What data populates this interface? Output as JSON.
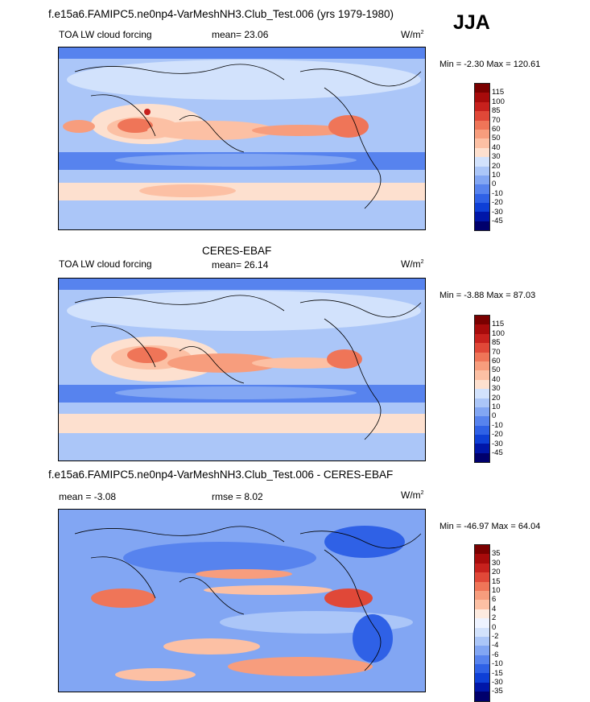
{
  "season": "JJA",
  "colors": {
    "abs_scale": [
      "#00006c",
      "#0016a8",
      "#0e3fd6",
      "#2f61e6",
      "#5783ee",
      "#82a6f3",
      "#abc6f8",
      "#d2e2fc",
      "#f7f7f7",
      "#fde0cf",
      "#fcc0a4",
      "#f79d7d",
      "#ef7558",
      "#e04838",
      "#c7211d",
      "#a70b0b",
      "#7a0000"
    ],
    "diff_scale": [
      "#00006c",
      "#0016a8",
      "#0e3fd6",
      "#2f61e6",
      "#5783ee",
      "#82a6f3",
      "#abc6f8",
      "#d2e2fc",
      "#eef3ff",
      "#fdebe0",
      "#fcc0a4",
      "#f79d7d",
      "#ef7558",
      "#e04838",
      "#c7211d",
      "#a70b0b",
      "#7a0000"
    ]
  },
  "panels": [
    {
      "title": "f.e15a6.FAMIPC5.ne0np4-VarMeshNH3.Club_Test.006 (yrs 1979-1980)",
      "left_label": "TOA LW cloud forcing",
      "mean_text": "mean=  23.06",
      "rmse_text": "",
      "units": "W/m",
      "units_sup": "2",
      "minmax": "Min =  -2.30 Max = 120.61",
      "ticks": [
        "115",
        "100",
        "85",
        "70",
        "60",
        "50",
        "40",
        "30",
        "20",
        "10",
        "0",
        "-10",
        "-20",
        "-30",
        "-45"
      ]
    },
    {
      "title": "CERES-EBAF",
      "left_label": "TOA LW cloud forcing",
      "mean_text": "mean=  26.14",
      "rmse_text": "",
      "units": "W/m",
      "units_sup": "2",
      "minmax": "Min =  -3.88 Max = 87.03",
      "ticks": [
        "115",
        "100",
        "85",
        "70",
        "60",
        "50",
        "40",
        "30",
        "20",
        "10",
        "0",
        "-10",
        "-20",
        "-30",
        "-45"
      ]
    },
    {
      "title": "f.e15a6.FAMIPC5.ne0np4-VarMeshNH3.Club_Test.006 - CERES-EBAF",
      "left_label": "mean =  -3.08",
      "mean_text": "",
      "rmse_text": "rmse =  8.02",
      "units": "W/m",
      "units_sup": "2",
      "minmax": "Min = -46.97 Max =  64.04",
      "ticks": [
        "35",
        "30",
        "20",
        "15",
        "10",
        "6",
        "4",
        "2",
        "0",
        "-2",
        "-4",
        "-6",
        "-10",
        "-15",
        "-30",
        "-35"
      ]
    }
  ]
}
